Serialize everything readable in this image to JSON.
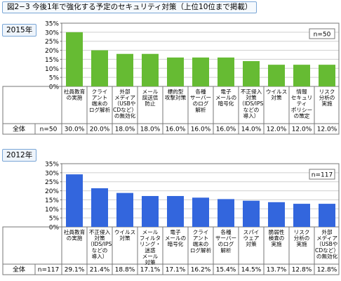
{
  "figure_title": "図2−3 今後1年で強化する予定のセキュリティ対策（上位10位まで掲載）",
  "panels": [
    {
      "year_label": "2015年"
    },
    {
      "year_label": "2012年"
    }
  ],
  "chart_data": [
    {
      "type": "bar",
      "title": "2015年",
      "n_label": "n=50",
      "ylim": [
        0,
        35
      ],
      "yticks": [
        "0%",
        "5%",
        "10%",
        "15%",
        "20%",
        "25%",
        "30%",
        "35%"
      ],
      "bar_color": "#66bb33",
      "row_label": "全体",
      "categories": [
        [
          "社員教育",
          "の実施"
        ],
        [
          "クライ",
          "アント",
          "端末の",
          "ログ解析"
        ],
        [
          "外部",
          "メディア",
          "（USBや",
          "CDなど）",
          "の無効化"
        ],
        [
          "メール",
          "誤送信",
          "防止"
        ],
        [
          "標的型",
          "攻撃対策"
        ],
        [
          "各種",
          "サーバー",
          "のログ",
          "解析"
        ],
        [
          "電子",
          "メールの",
          "暗号化"
        ],
        [
          "不正侵入",
          "対策",
          "（IDS/IPS",
          "などの",
          "導入）"
        ],
        [
          "ウイルス",
          "対策"
        ],
        [
          "情報",
          "セキュリ",
          "ティ",
          "ポリシー",
          "の策定"
        ],
        [
          "リスク",
          "分析の",
          "実施"
        ]
      ],
      "values": [
        30.0,
        20.0,
        18.0,
        18.0,
        16.0,
        16.0,
        16.0,
        14.0,
        12.0,
        12.0,
        12.0
      ],
      "value_labels": [
        "30.0%",
        "20.0%",
        "18.0%",
        "18.0%",
        "16.0%",
        "16.0%",
        "16.0%",
        "14.0%",
        "12.0%",
        "12.0%",
        "12.0%"
      ]
    },
    {
      "type": "bar",
      "title": "2012年",
      "n_label": "n=117",
      "ylim": [
        0,
        35
      ],
      "yticks": [
        "0%",
        "5%",
        "10%",
        "15%",
        "20%",
        "25%",
        "30%",
        "35%"
      ],
      "bar_color": "#3366dd",
      "row_label": "全体",
      "categories": [
        [
          "社員教育",
          "の実施"
        ],
        [
          "不正侵入",
          "対策",
          "（IDS/IPS",
          "などの",
          "導入）"
        ],
        [
          "ウイルス",
          "対策"
        ],
        [
          "メール",
          "フィルタ",
          "リング・",
          "迷惑",
          "メール",
          "対策"
        ],
        [
          "電子",
          "メールの",
          "暗号化"
        ],
        [
          "クライ",
          "アント",
          "端末の",
          "ログ解析"
        ],
        [
          "各種",
          "サーバー",
          "のログ",
          "解析"
        ],
        [
          "スパイ",
          "ウェア",
          "対策"
        ],
        [
          "脆弱性",
          "検査の",
          "実施"
        ],
        [
          "リスク",
          "分析の",
          "実施"
        ],
        [
          "外部",
          "メディア",
          "（USBや",
          "CDなど）",
          "の無効化"
        ]
      ],
      "values": [
        29.1,
        21.4,
        18.8,
        17.1,
        17.1,
        16.2,
        15.4,
        14.5,
        13.7,
        12.8,
        12.8
      ],
      "value_labels": [
        "29.1%",
        "21.4%",
        "18.8%",
        "17.1%",
        "17.1%",
        "16.2%",
        "15.4%",
        "14.5%",
        "13.7%",
        "12.8%",
        "12.8%"
      ]
    }
  ]
}
